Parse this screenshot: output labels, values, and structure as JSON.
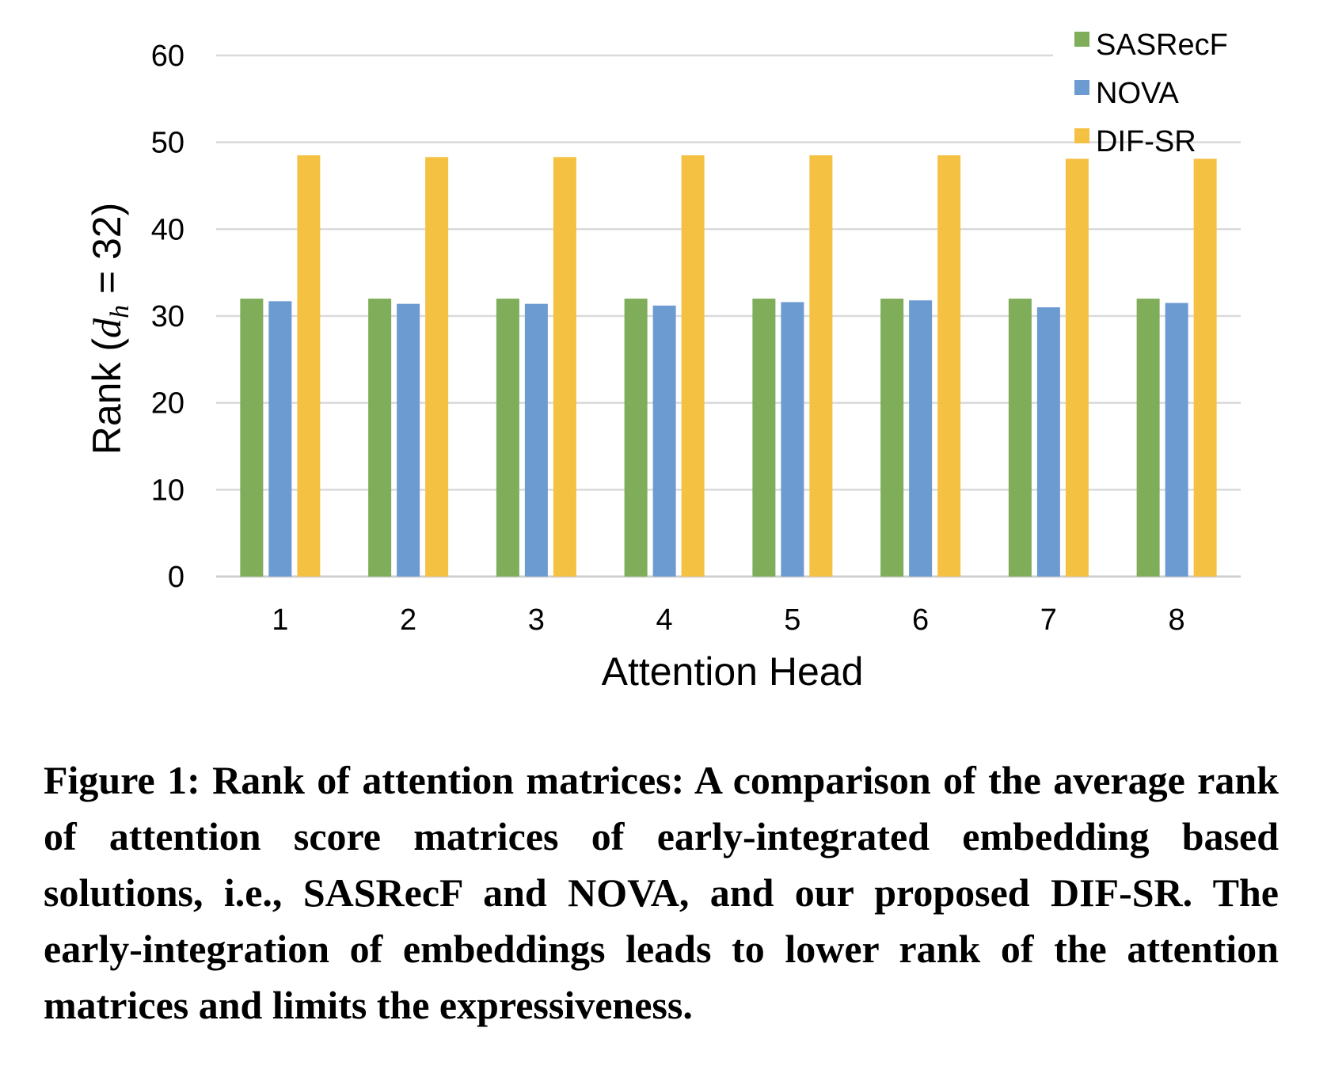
{
  "chart_data": {
    "type": "bar",
    "categories": [
      "1",
      "2",
      "3",
      "4",
      "5",
      "6",
      "7",
      "8"
    ],
    "series": [
      {
        "name": "SASRecF",
        "color": "#7fad59",
        "values": [
          32,
          32,
          32,
          32,
          32,
          32,
          32,
          32
        ]
      },
      {
        "name": "NOVA",
        "color": "#6c9bd1",
        "values": [
          31.7,
          31.4,
          31.4,
          31.2,
          31.6,
          31.8,
          31.0,
          31.5
        ]
      },
      {
        "name": "DIF-SR",
        "color": "#f5c142",
        "values": [
          48.5,
          48.3,
          48.3,
          48.5,
          48.5,
          48.5,
          48.1,
          48.1
        ]
      }
    ],
    "xlabel": "Attention Head",
    "ylabel": {
      "prefix": "Rank  (",
      "symbol": "d",
      "subscript": "h",
      "suffix": " = 32)"
    },
    "ylim": [
      0,
      60
    ],
    "yticks": [
      0,
      10,
      20,
      30,
      40,
      50,
      60
    ],
    "grid": true,
    "legend_position": "top-right"
  },
  "caption": "Figure 1: Rank of attention matrices: A comparison of the aver­age rank of attention score matrices of early-integrated embed­ding based solutions, i.e., SASRecF and NOVA, and our pro­posed DIF-SR. The early-integration of embeddings leads to lower rank of the attention matrices and limits the expressive­ness."
}
